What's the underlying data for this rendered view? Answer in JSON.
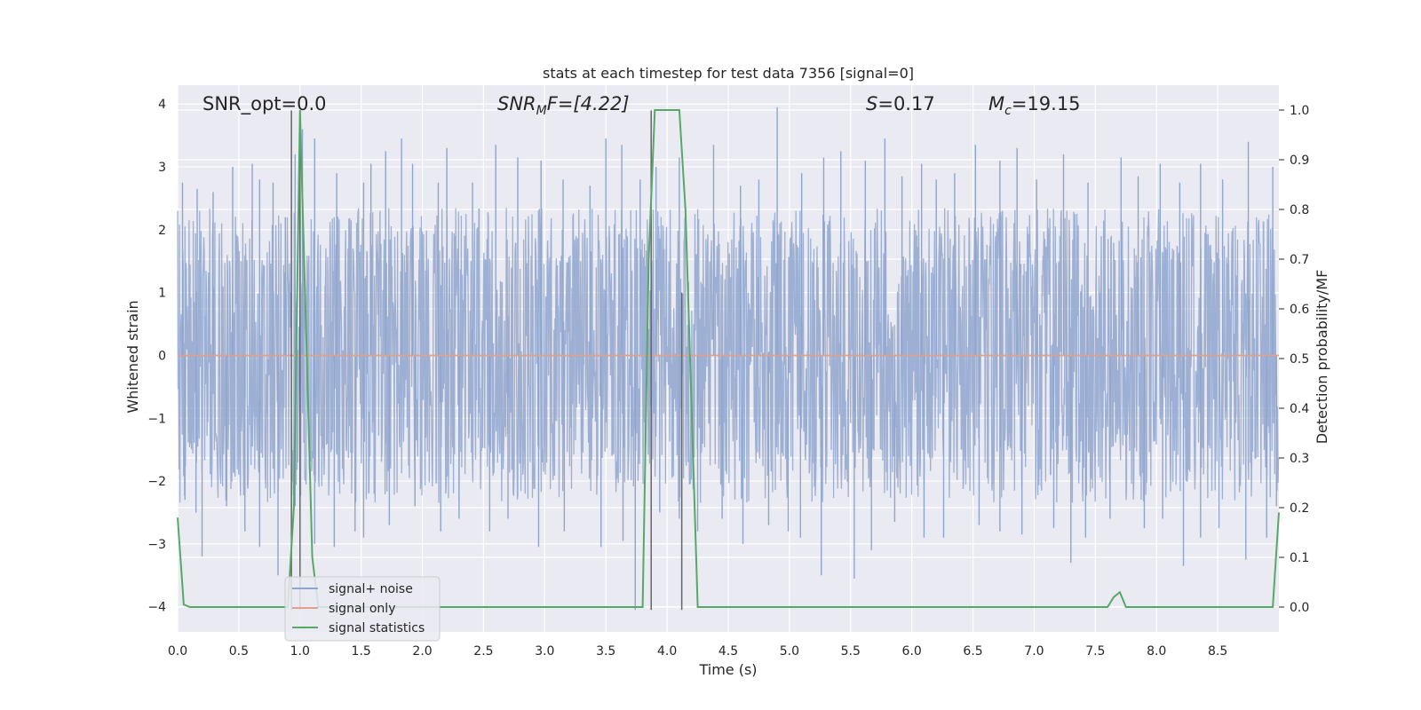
{
  "chart_data": {
    "type": "line",
    "title": "stats at each timestep for test data 7356 [signal=0]",
    "xlabel": "Time (s)",
    "ylabel": "Whitened strain",
    "ylabel_right": "Detection probability/MF",
    "xlim": [
      0,
      9
    ],
    "ylim": [
      -4.4,
      4.3
    ],
    "ylim_right": [
      -0.05,
      1.05
    ],
    "x_ticks": [
      "0.0",
      "0.5",
      "1.0",
      "1.5",
      "2.0",
      "2.5",
      "3.0",
      "3.5",
      "4.0",
      "4.5",
      "5.0",
      "5.5",
      "6.0",
      "6.5",
      "7.0",
      "7.5",
      "8.0",
      "8.5"
    ],
    "y_ticks": [
      "4",
      "3",
      "2",
      "1",
      "0",
      "−1",
      "−2",
      "−3",
      "−4"
    ],
    "y_ticks_right": [
      "1.0",
      "0.9",
      "0.8",
      "0.7",
      "0.6",
      "0.5",
      "0.4",
      "0.3",
      "0.2",
      "0.1",
      "0.0"
    ],
    "grid": true,
    "legend_position": "lower-left",
    "annotations": {
      "snr_opt": "SNR_opt=0.0",
      "snr_mf_main": "SNR",
      "snr_mf_sub": "M",
      "snr_mf_rest": "F=[4.22]",
      "s_main": "S",
      "s_rest": "=0.17",
      "mc_main": "M",
      "mc_sub": "c",
      "mc_rest": "=19.15"
    },
    "series": [
      {
        "name": "signal+ noise",
        "color": "#8fa5cd",
        "description_points": "dense noise, envelope approx +/-2.5 with spikes to +/-3.6",
        "noise_band": [
          -1.6,
          1.6
        ],
        "spikes_up": [
          [
            0.04,
            2.75
          ],
          [
            0.16,
            2.65
          ],
          [
            0.29,
            2.6
          ],
          [
            0.45,
            3.0
          ],
          [
            0.61,
            3.05
          ],
          [
            0.67,
            2.8
          ],
          [
            0.78,
            2.75
          ],
          [
            0.88,
            2.2
          ],
          [
            0.96,
            3.2
          ],
          [
            1.02,
            3.6
          ],
          [
            1.12,
            3.45
          ],
          [
            1.3,
            2.9
          ],
          [
            1.52,
            2.75
          ],
          [
            1.58,
            3.05
          ],
          [
            1.7,
            3.25
          ],
          [
            1.83,
            3.45
          ],
          [
            1.92,
            3.05
          ],
          [
            2.13,
            2.75
          ],
          [
            2.2,
            3.3
          ],
          [
            2.41,
            2.75
          ],
          [
            2.6,
            3.35
          ],
          [
            2.78,
            3.15
          ],
          [
            2.97,
            3.1
          ],
          [
            3.15,
            2.8
          ],
          [
            3.37,
            2.7
          ],
          [
            3.5,
            3.45
          ],
          [
            3.63,
            3.35
          ],
          [
            3.78,
            2.8
          ],
          [
            3.91,
            3.0
          ],
          [
            4.1,
            3.15
          ],
          [
            4.38,
            3.35
          ],
          [
            4.6,
            2.7
          ],
          [
            4.75,
            2.8
          ],
          [
            4.9,
            3.95
          ],
          [
            5.1,
            2.9
          ],
          [
            5.28,
            3.15
          ],
          [
            5.42,
            3.25
          ],
          [
            5.62,
            3.1
          ],
          [
            5.78,
            3.45
          ],
          [
            5.92,
            2.85
          ],
          [
            6.08,
            3.05
          ],
          [
            6.2,
            2.8
          ],
          [
            6.35,
            2.9
          ],
          [
            6.52,
            3.35
          ],
          [
            6.72,
            3.1
          ],
          [
            6.86,
            3.3
          ],
          [
            7.02,
            2.8
          ],
          [
            7.24,
            3.2
          ],
          [
            7.44,
            2.75
          ],
          [
            7.71,
            3.15
          ],
          [
            7.85,
            2.85
          ],
          [
            8.03,
            3.05
          ],
          [
            8.19,
            2.75
          ],
          [
            8.36,
            3.05
          ],
          [
            8.54,
            2.8
          ],
          [
            8.75,
            3.4
          ],
          [
            8.95,
            3.0
          ]
        ],
        "spikes_down": [
          [
            0.06,
            -2.3
          ],
          [
            0.15,
            -2.5
          ],
          [
            0.2,
            -3.2
          ],
          [
            0.4,
            -2.4
          ],
          [
            0.55,
            -2.8
          ],
          [
            0.67,
            -3.05
          ],
          [
            0.82,
            -3.5
          ],
          [
            0.96,
            -2.4
          ],
          [
            1.12,
            -3.0
          ],
          [
            1.28,
            -3.05
          ],
          [
            1.45,
            -2.8
          ],
          [
            1.52,
            -2.9
          ],
          [
            1.73,
            -2.7
          ],
          [
            1.94,
            -2.4
          ],
          [
            2.15,
            -2.8
          ],
          [
            2.3,
            -2.6
          ],
          [
            2.55,
            -2.8
          ],
          [
            2.7,
            -2.6
          ],
          [
            2.95,
            -3.05
          ],
          [
            3.16,
            -2.8
          ],
          [
            3.46,
            -3.05
          ],
          [
            3.64,
            -2.95
          ],
          [
            3.74,
            -4.05
          ],
          [
            3.94,
            -2.5
          ],
          [
            4.1,
            -2.6
          ],
          [
            4.25,
            -2.8
          ],
          [
            4.45,
            -2.6
          ],
          [
            4.62,
            -3.0
          ],
          [
            4.83,
            -2.7
          ],
          [
            4.99,
            -2.8
          ],
          [
            5.09,
            -2.9
          ],
          [
            5.26,
            -3.5
          ],
          [
            5.53,
            -3.55
          ],
          [
            5.67,
            -3.1
          ],
          [
            5.86,
            -2.65
          ],
          [
            6.1,
            -2.9
          ],
          [
            6.26,
            -2.9
          ],
          [
            6.55,
            -2.7
          ],
          [
            6.72,
            -2.8
          ],
          [
            6.9,
            -2.85
          ],
          [
            7.16,
            -2.75
          ],
          [
            7.3,
            -3.3
          ],
          [
            7.42,
            -2.9
          ],
          [
            7.62,
            -2.6
          ],
          [
            7.9,
            -2.75
          ],
          [
            8.05,
            -2.6
          ],
          [
            8.22,
            -3.35
          ],
          [
            8.36,
            -2.9
          ],
          [
            8.51,
            -2.75
          ],
          [
            8.73,
            -3.25
          ],
          [
            8.9,
            -2.9
          ],
          [
            8.98,
            -2.4
          ]
        ]
      },
      {
        "name": "signal only",
        "color": "#e1a08a",
        "value": 0
      },
      {
        "name": "signal statistics",
        "color": "#55a868",
        "x": [
          0.0,
          0.05,
          0.1,
          0.15,
          0.9,
          0.95,
          1.0,
          1.05,
          1.1,
          1.15,
          3.75,
          3.8,
          3.85,
          3.9,
          3.95,
          4.0,
          4.1,
          4.15,
          4.2,
          4.25,
          4.3,
          7.6,
          7.65,
          7.7,
          7.75,
          8.85,
          8.9,
          8.95,
          9.0
        ],
        "y": [
          0.18,
          0.005,
          0.0,
          0.0,
          0.0,
          0.2,
          1.0,
          0.55,
          0.1,
          0.0,
          0.0,
          0.0,
          0.7,
          1.0,
          1.0,
          1.0,
          1.0,
          0.8,
          0.4,
          0.0,
          0.0,
          0.0,
          0.02,
          0.03,
          0.0,
          0.0,
          0.0,
          0.0,
          0.19
        ]
      }
    ],
    "vertical_lines": [
      {
        "x": 0.93,
        "from": -4.05,
        "to": 3.9,
        "color": "#666666"
      },
      {
        "x": 1.0,
        "from": -4.05,
        "to": 3.9,
        "color": "#666666"
      },
      {
        "x": 3.87,
        "from": -4.05,
        "to": 3.9,
        "color": "#666666"
      },
      {
        "x": 4.12,
        "from": -4.05,
        "to": 1.0,
        "color": "#666666"
      }
    ]
  },
  "colors": {
    "plot_bg": "#eaeaf2",
    "grid": "#ffffff",
    "legend_bg": "#eaeaf2",
    "legend_border": "#cccccc"
  }
}
